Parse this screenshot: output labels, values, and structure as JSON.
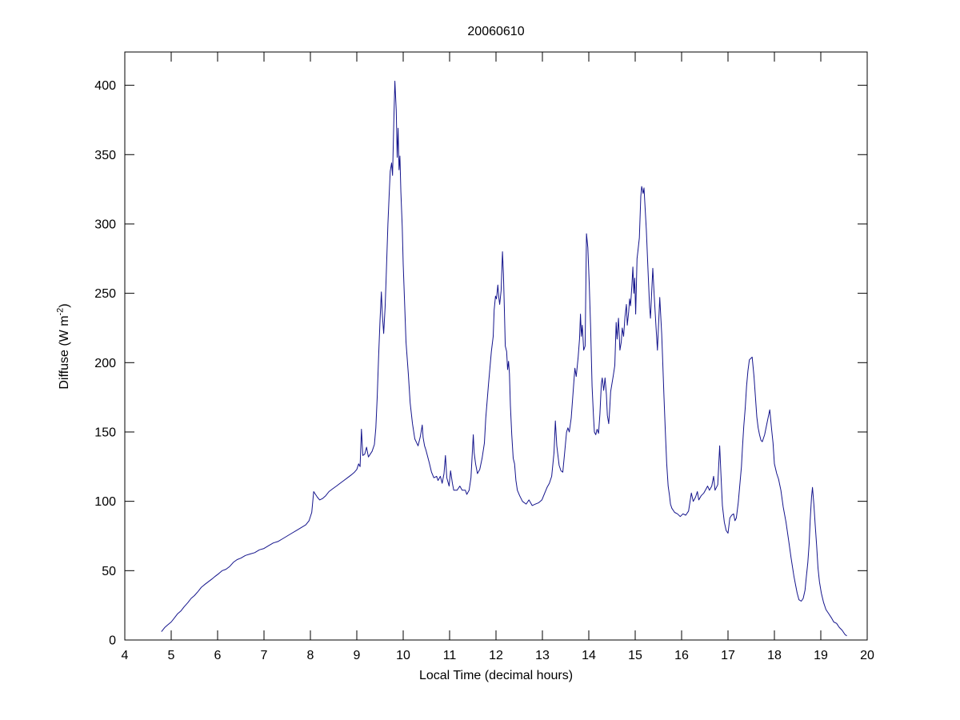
{
  "chart_data": {
    "type": "line",
    "title": "20060610",
    "xlabel": "Local Time (decimal hours)",
    "ylabel": "Diffuse (W m-2)",
    "ylabel_main": "Diffuse (W m",
    "ylabel_sup": "-2",
    "ylabel_end": ")",
    "xlim": [
      4,
      20
    ],
    "ylim": [
      0,
      424
    ],
    "x_ticks": [
      4,
      5,
      6,
      7,
      8,
      9,
      10,
      11,
      12,
      13,
      14,
      15,
      16,
      17,
      18,
      19,
      20
    ],
    "y_ticks": [
      0,
      50,
      100,
      150,
      200,
      250,
      300,
      350,
      400
    ],
    "grid": false,
    "legend": null,
    "line_color": "#14148C",
    "axis_color": "#000000",
    "series": [
      {
        "name": "diffuse",
        "x": [
          4.79,
          4.86,
          4.93,
          5.0,
          5.07,
          5.14,
          5.21,
          5.28,
          5.36,
          5.43,
          5.5,
          5.58,
          5.65,
          5.72,
          5.8,
          5.88,
          5.95,
          6.03,
          6.1,
          6.18,
          6.26,
          6.34,
          6.42,
          6.5,
          6.6,
          6.7,
          6.8,
          6.9,
          7.0,
          7.1,
          7.2,
          7.3,
          7.4,
          7.5,
          7.6,
          7.7,
          7.8,
          7.9,
          7.97,
          8.03,
          8.07,
          8.11,
          8.15,
          8.2,
          8.26,
          8.33,
          8.4,
          8.48,
          8.56,
          8.64,
          8.72,
          8.8,
          8.88,
          8.95,
          9.0,
          9.04,
          9.07,
          9.1,
          9.13,
          9.17,
          9.21,
          9.25,
          9.29,
          9.33,
          9.38,
          9.41,
          9.44,
          9.47,
          9.5,
          9.53,
          9.55,
          9.58,
          9.61,
          9.63,
          9.67,
          9.7,
          9.72,
          9.75,
          9.77,
          9.8,
          9.82,
          9.85,
          9.87,
          9.89,
          9.91,
          9.93,
          9.95,
          9.98,
          10.0,
          10.03,
          10.06,
          10.11,
          10.15,
          10.2,
          10.25,
          10.32,
          10.37,
          10.41,
          10.43,
          10.46,
          10.49,
          10.56,
          10.61,
          10.66,
          10.72,
          10.75,
          10.8,
          10.84,
          10.88,
          10.91,
          10.94,
          10.99,
          11.02,
          11.06,
          11.09,
          11.16,
          11.22,
          11.27,
          11.34,
          11.37,
          11.42,
          11.46,
          11.51,
          11.53,
          11.56,
          11.6,
          11.65,
          11.7,
          11.75,
          11.78,
          11.84,
          11.9,
          11.94,
          11.96,
          11.99,
          12.01,
          12.04,
          12.06,
          12.08,
          12.11,
          12.14,
          12.16,
          12.18,
          12.2,
          12.23,
          12.25,
          12.27,
          12.29,
          12.31,
          12.34,
          12.37,
          12.4,
          12.43,
          12.46,
          12.51,
          12.57,
          12.65,
          12.71,
          12.78,
          12.85,
          12.92,
          12.99,
          13.05,
          13.1,
          13.15,
          13.2,
          13.25,
          13.28,
          13.31,
          13.36,
          13.4,
          13.44,
          13.48,
          13.52,
          13.55,
          13.58,
          13.62,
          13.66,
          13.7,
          13.73,
          13.77,
          13.8,
          13.82,
          13.84,
          13.86,
          13.89,
          13.92,
          13.95,
          13.98,
          14.01,
          14.04,
          14.07,
          14.1,
          14.12,
          14.15,
          14.18,
          14.21,
          14.24,
          14.27,
          14.29,
          14.32,
          14.35,
          14.38,
          14.4,
          14.43,
          14.45,
          14.47,
          14.5,
          14.53,
          14.56,
          14.59,
          14.61,
          14.64,
          14.67,
          14.7,
          14.72,
          14.75,
          14.78,
          14.81,
          14.83,
          14.86,
          14.88,
          14.9,
          14.93,
          14.95,
          14.97,
          14.99,
          15.01,
          15.04,
          15.06,
          15.09,
          15.12,
          15.14,
          15.17,
          15.19,
          15.24,
          15.27,
          15.31,
          15.33,
          15.38,
          15.41,
          15.45,
          15.48,
          15.53,
          15.57,
          15.59,
          15.62,
          15.65,
          15.68,
          15.71,
          15.74,
          15.76,
          15.79,
          15.85,
          15.91,
          15.97,
          16.03,
          16.09,
          16.15,
          16.21,
          16.25,
          16.3,
          16.34,
          16.37,
          16.42,
          16.48,
          16.53,
          16.56,
          16.6,
          16.65,
          16.69,
          16.72,
          16.78,
          16.82,
          16.85,
          16.88,
          16.92,
          16.96,
          17.0,
          17.04,
          17.08,
          17.12,
          17.15,
          17.18,
          17.22,
          17.26,
          17.29,
          17.31,
          17.34,
          17.37,
          17.4,
          17.43,
          17.46,
          17.52,
          17.56,
          17.59,
          17.62,
          17.65,
          17.68,
          17.71,
          17.74,
          17.79,
          17.85,
          17.9,
          17.94,
          17.97,
          18.0,
          18.05,
          18.09,
          18.14,
          18.19,
          18.25,
          18.31,
          18.36,
          18.42,
          18.46,
          18.49,
          18.53,
          18.58,
          18.62,
          18.66,
          18.69,
          18.72,
          18.75,
          18.77,
          18.8,
          18.82,
          18.85,
          18.88,
          18.91,
          18.94,
          18.97,
          19.01,
          19.06,
          19.11,
          19.17,
          19.23,
          19.28,
          19.34,
          19.4,
          19.46,
          19.52,
          19.56
        ],
        "y": [
          6,
          9,
          11,
          13,
          16,
          19,
          21,
          24,
          27,
          30,
          32,
          35,
          38,
          40,
          42,
          44,
          46,
          48,
          50,
          51,
          53,
          56,
          58,
          59,
          61,
          62,
          63,
          65,
          66,
          68,
          70,
          71,
          73,
          75,
          77,
          79,
          81,
          83,
          86,
          92,
          107,
          105,
          103,
          101,
          102,
          104,
          107,
          109,
          111,
          113,
          115,
          117,
          119,
          121,
          123,
          127,
          125,
          152,
          133,
          134,
          139,
          132,
          134,
          136,
          141,
          153,
          175,
          205,
          230,
          251,
          235,
          221,
          240,
          258,
          300,
          323,
          338,
          344,
          335,
          377,
          403,
          382,
          348,
          369,
          339,
          349,
          323,
          298,
          271,
          244,
          215,
          192,
          171,
          156,
          145,
          140,
          147,
          155,
          146,
          140,
          137,
          128,
          121,
          117,
          118,
          115,
          118,
          113,
          120,
          133,
          117,
          111,
          122,
          113,
          108,
          108,
          111,
          108,
          108,
          105,
          108,
          117,
          148,
          135,
          127,
          120,
          123,
          131,
          142,
          160,
          185,
          208,
          219,
          238,
          248,
          246,
          256,
          247,
          242,
          252,
          280,
          264,
          240,
          212,
          208,
          195,
          201,
          192,
          169,
          148,
          131,
          127,
          115,
          108,
          104,
          100,
          98,
          101,
          97,
          98,
          99,
          101,
          106,
          110,
          113,
          118,
          135,
          158,
          140,
          126,
          122,
          121,
          135,
          150,
          153,
          150,
          160,
          178,
          196,
          190,
          204,
          217,
          235,
          219,
          227,
          209,
          212,
          293,
          283,
          256,
          225,
          183,
          162,
          150,
          148,
          152,
          149,
          163,
          185,
          189,
          180,
          189,
          177,
          162,
          156,
          166,
          179,
          185,
          191,
          198,
          229,
          217,
          232,
          209,
          215,
          225,
          219,
          233,
          242,
          227,
          237,
          246,
          241,
          256,
          269,
          250,
          261,
          235,
          275,
          281,
          290,
          320,
          327,
          322,
          326,
          296,
          271,
          240,
          232,
          268,
          248,
          225,
          209,
          247,
          221,
          204,
          175,
          150,
          127,
          111,
          104,
          98,
          95,
          92,
          91,
          89,
          91,
          90,
          93,
          106,
          100,
          103,
          107,
          101,
          104,
          106,
          109,
          111,
          108,
          111,
          118,
          108,
          112,
          140,
          118,
          97,
          85,
          79,
          77,
          88,
          90,
          91,
          86,
          88,
          99,
          114,
          125,
          138,
          154,
          167,
          183,
          194,
          202,
          204,
          190,
          176,
          161,
          153,
          148,
          144,
          143,
          148,
          158,
          166,
          152,
          142,
          127,
          120,
          116,
          108,
          96,
          85,
          71,
          59,
          46,
          39,
          34,
          29,
          28,
          30,
          36,
          46,
          56,
          70,
          86,
          103,
          110,
          98,
          83,
          68,
          52,
          42,
          34,
          27,
          22,
          19,
          16,
          13,
          12,
          9,
          7,
          4,
          3
        ]
      }
    ]
  }
}
